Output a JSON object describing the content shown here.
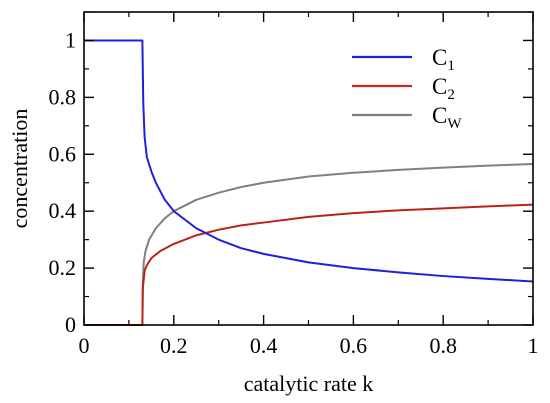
{
  "chart_data": {
    "type": "line",
    "xlabel": "catalytic rate k",
    "ylabel": "concentration",
    "xlim": [
      0,
      1
    ],
    "ylim": [
      0,
      1.1
    ],
    "x_ticks": [
      "0",
      "0.2",
      "0.4",
      "0.6",
      "0.8",
      "1"
    ],
    "x_tick_values": [
      0,
      0.2,
      0.4,
      0.6,
      0.8,
      1
    ],
    "y_ticks": [
      "0",
      "0.2",
      "0.4",
      "0.6",
      "0.8",
      "1"
    ],
    "y_tick_values": [
      0,
      0.2,
      0.4,
      0.6,
      0.8,
      1
    ],
    "grid": false,
    "legend_placement": "top-right",
    "series": [
      {
        "name": "C1",
        "label_main": "C",
        "label_sub": "1",
        "color": "#1f1fdc",
        "x": [
          0,
          0.05,
          0.1,
          0.13,
          0.132,
          0.135,
          0.14,
          0.15,
          0.16,
          0.18,
          0.2,
          0.25,
          0.3,
          0.35,
          0.4,
          0.5,
          0.6,
          0.7,
          0.8,
          0.9,
          1.0
        ],
        "y": [
          1,
          1,
          1,
          1,
          0.78,
          0.66,
          0.59,
          0.54,
          0.5,
          0.44,
          0.4,
          0.34,
          0.3,
          0.27,
          0.25,
          0.22,
          0.2,
          0.185,
          0.172,
          0.162,
          0.153
        ]
      },
      {
        "name": "C2",
        "label_main": "C",
        "label_sub": "2",
        "color": "#d42020",
        "x": [
          0,
          0.05,
          0.1,
          0.13,
          0.131,
          0.135,
          0.14,
          0.15,
          0.17,
          0.2,
          0.25,
          0.3,
          0.35,
          0.4,
          0.5,
          0.6,
          0.7,
          0.8,
          0.9,
          1.0
        ],
        "y": [
          0,
          0,
          0,
          0,
          0.13,
          0.19,
          0.21,
          0.235,
          0.26,
          0.285,
          0.315,
          0.335,
          0.35,
          0.36,
          0.38,
          0.393,
          0.403,
          0.41,
          0.417,
          0.423
        ]
      },
      {
        "name": "CW",
        "label_main": "C",
        "label_sub": "W",
        "color": "#808080",
        "x": [
          0,
          0.05,
          0.1,
          0.13,
          0.131,
          0.133,
          0.137,
          0.145,
          0.16,
          0.18,
          0.2,
          0.25,
          0.3,
          0.35,
          0.4,
          0.5,
          0.6,
          0.7,
          0.8,
          0.9,
          1.0
        ],
        "y": [
          0,
          0,
          0,
          0,
          0.14,
          0.22,
          0.26,
          0.3,
          0.34,
          0.375,
          0.4,
          0.44,
          0.465,
          0.485,
          0.5,
          0.522,
          0.535,
          0.545,
          0.553,
          0.56,
          0.566
        ]
      }
    ]
  }
}
